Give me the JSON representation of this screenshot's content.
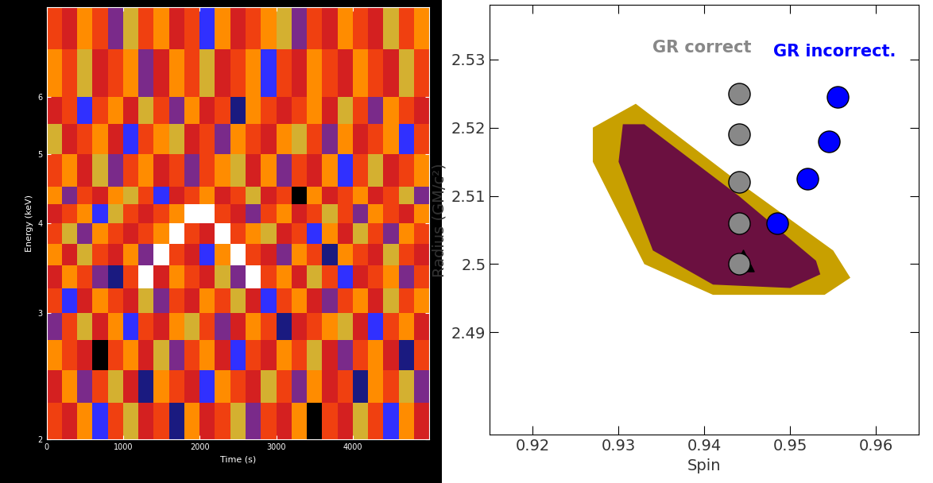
{
  "chart_data": [
    {
      "type": "heatmap",
      "xlabel": "Time (s)",
      "ylabel": "Energy (keV)",
      "log": "y",
      "xlim": [
        0,
        5000
      ],
      "ylim": [
        2,
        8
      ],
      "xticks": [
        0,
        1000,
        2000,
        3000,
        4000
      ],
      "yticks": [
        2,
        3,
        4,
        5,
        6
      ],
      "x_edges": [
        0,
        200,
        400,
        600,
        800,
        1000,
        1200,
        1400,
        1600,
        1800,
        2000,
        2200,
        2400,
        2600,
        2800,
        3000,
        3200,
        3400,
        3600,
        3800,
        4000,
        4200,
        4400,
        4600,
        4800,
        5000
      ],
      "y_edges": [
        2,
        2.25,
        2.5,
        2.75,
        3,
        3.25,
        3.5,
        3.75,
        4,
        4.25,
        4.5,
        5,
        5.5,
        6,
        7,
        8
      ],
      "cells": [
        [
          5,
          4,
          6,
          2,
          5,
          7,
          4,
          5,
          1,
          6,
          4,
          5,
          7,
          3,
          5,
          4,
          6,
          0,
          5,
          4,
          7,
          5,
          2,
          6,
          4
        ],
        [
          4,
          6,
          3,
          5,
          7,
          4,
          1,
          6,
          5,
          4,
          2,
          6,
          5,
          4,
          7,
          5,
          3,
          6,
          4,
          5,
          1,
          6,
          5,
          7,
          3
        ],
        [
          6,
          5,
          4,
          0,
          5,
          6,
          4,
          7,
          3,
          5,
          6,
          4,
          2,
          5,
          4,
          6,
          5,
          7,
          4,
          3,
          5,
          6,
          4,
          1,
          5
        ],
        [
          3,
          5,
          7,
          4,
          6,
          2,
          5,
          4,
          6,
          7,
          5,
          3,
          4,
          6,
          5,
          1,
          4,
          5,
          6,
          7,
          4,
          2,
          5,
          6,
          4
        ],
        [
          5,
          2,
          4,
          6,
          5,
          4,
          7,
          3,
          5,
          4,
          6,
          5,
          7,
          4,
          2,
          5,
          6,
          4,
          3,
          5,
          6,
          4,
          7,
          5,
          6
        ],
        [
          4,
          6,
          5,
          3,
          1,
          5,
          8,
          4,
          6,
          5,
          4,
          7,
          3,
          8,
          5,
          6,
          4,
          7,
          5,
          2,
          4,
          5,
          6,
          3,
          5
        ],
        [
          6,
          4,
          7,
          5,
          4,
          6,
          3,
          8,
          5,
          4,
          2,
          6,
          8,
          5,
          4,
          3,
          6,
          5,
          1,
          6,
          5,
          4,
          7,
          5,
          4
        ],
        [
          5,
          7,
          3,
          6,
          5,
          4,
          5,
          6,
          8,
          5,
          4,
          8,
          5,
          6,
          7,
          4,
          5,
          2,
          6,
          4,
          7,
          5,
          3,
          6,
          5
        ],
        [
          4,
          5,
          6,
          2,
          7,
          5,
          4,
          5,
          6,
          8,
          8,
          5,
          4,
          3,
          5,
          6,
          4,
          5,
          7,
          5,
          3,
          6,
          5,
          4,
          6
        ],
        [
          6,
          3,
          5,
          4,
          6,
          7,
          5,
          2,
          4,
          5,
          6,
          4,
          5,
          7,
          4,
          5,
          0,
          6,
          4,
          5,
          6,
          4,
          5,
          7,
          3
        ],
        [
          5,
          6,
          4,
          7,
          3,
          5,
          6,
          4,
          5,
          3,
          5,
          6,
          7,
          4,
          6,
          3,
          5,
          4,
          6,
          2,
          5,
          7,
          4,
          5,
          6
        ],
        [
          7,
          4,
          5,
          6,
          4,
          2,
          5,
          6,
          7,
          4,
          5,
          3,
          6,
          5,
          4,
          6,
          7,
          5,
          3,
          6,
          4,
          5,
          6,
          2,
          5
        ],
        [
          4,
          5,
          2,
          5,
          6,
          4,
          7,
          5,
          3,
          6,
          4,
          5,
          1,
          6,
          5,
          4,
          5,
          6,
          4,
          7,
          5,
          3,
          6,
          5,
          4
        ],
        [
          6,
          5,
          7,
          4,
          5,
          6,
          3,
          4,
          6,
          5,
          7,
          4,
          5,
          6,
          2,
          5,
          4,
          6,
          5,
          4,
          6,
          5,
          4,
          7,
          5
        ],
        [
          5,
          4,
          6,
          5,
          3,
          7,
          5,
          6,
          4,
          5,
          2,
          6,
          4,
          5,
          6,
          7,
          3,
          5,
          4,
          6,
          5,
          4,
          7,
          5,
          6
        ]
      ]
    },
    {
      "type": "scatter",
      "xlabel": "Spin",
      "ylabel": "Radius (GM/c²)",
      "xlim": [
        0.915,
        0.965
      ],
      "ylim": [
        2.475,
        2.538
      ],
      "xticks": [
        0.92,
        0.93,
        0.94,
        0.95,
        0.96
      ],
      "yticks": [
        2.49,
        2.5,
        2.51,
        2.52,
        2.53
      ],
      "regions": [
        {
          "color": "#c8a000",
          "x": [
            0.927,
            0.932,
            0.944,
            0.955,
            0.957,
            0.954,
            0.941,
            0.933,
            0.927
          ],
          "y": [
            2.52,
            2.5235,
            2.512,
            2.502,
            2.498,
            2.4955,
            2.4955,
            2.5,
            2.515
          ]
        },
        {
          "color": "#6b1040",
          "x": [
            0.9305,
            0.933,
            0.944,
            0.953,
            0.9535,
            0.95,
            0.941,
            0.934,
            0.93
          ],
          "y": [
            2.5205,
            2.5205,
            2.51,
            2.5005,
            2.4985,
            2.4965,
            2.497,
            2.502,
            2.515
          ]
        }
      ],
      "series": [
        {
          "color": "#000000",
          "marker": "triangle",
          "x": [
            0.9445
          ],
          "y": [
            2.5005
          ]
        },
        {
          "name": "GR correct",
          "color": "#888888",
          "marker": "circle",
          "x": [
            0.944,
            0.944,
            0.944,
            0.944,
            0.944
          ],
          "y": [
            2.5,
            2.506,
            2.512,
            2.519,
            2.525
          ]
        },
        {
          "name": "GR incorrect.",
          "color": "#0000ff",
          "marker": "circle",
          "x": [
            0.9485,
            0.952,
            0.9545,
            0.9555
          ],
          "y": [
            2.506,
            2.5125,
            2.518,
            2.5245
          ]
        }
      ]
    }
  ]
}
